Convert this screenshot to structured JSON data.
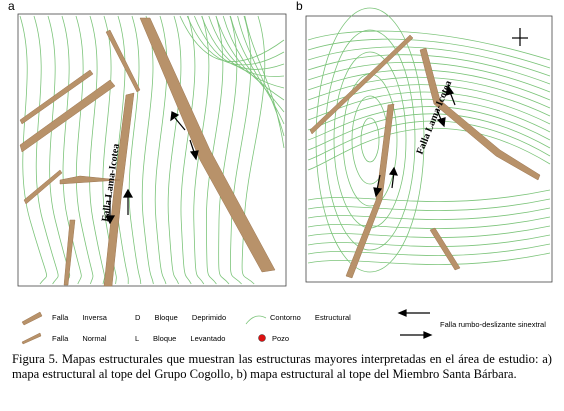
{
  "panels": [
    {
      "label": "a",
      "fault_label": "Falla Lama-Icotea"
    },
    {
      "label": "b",
      "fault_label": "Falla Lama-Icotea"
    }
  ],
  "legend": {
    "reverse_fault": "Falla Inversa",
    "normal_fault": "Falla Normal",
    "down_block": "D Bloque Deprimido",
    "up_block": "L Bloque Levantado",
    "contour": "Contorno Estructural",
    "well": "Pozo",
    "strike_slip": "Falla rumbo-deslizante sinextral"
  },
  "caption": "Figura 5. Mapas estructurales que muestran las estructuras mayores interpretadas en el área de estudio: a) mapa estructural al tope del Grupo Cogollo, b) mapa estructural al tope del Miembro Santa Bárbara."
}
